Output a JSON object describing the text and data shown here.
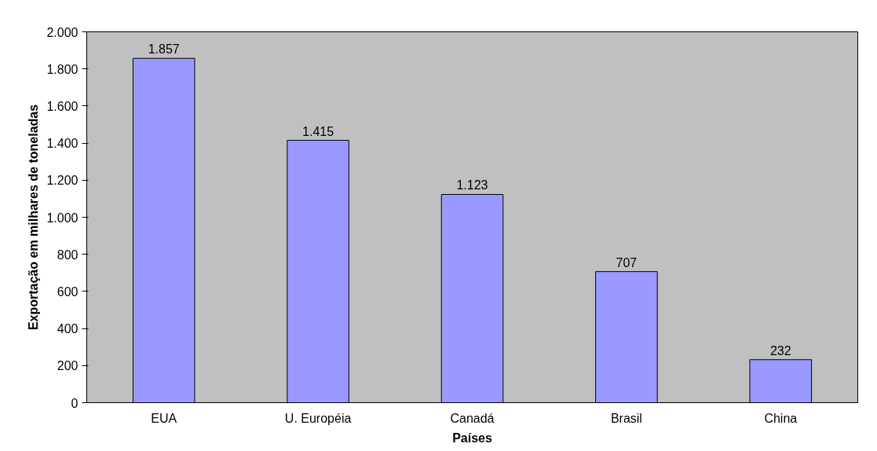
{
  "chart_data": {
    "type": "bar",
    "xlabel": "Países",
    "ylabel": "Exportação em milhares de toneladas",
    "categories": [
      "EUA",
      "U. Européia",
      "Canadá",
      "Brasil",
      "China"
    ],
    "values": [
      1857,
      1415,
      1123,
      707,
      232
    ],
    "color": "#9999ff",
    "value_labels": [
      "1.857",
      "1.415",
      "1.123",
      "707",
      "232"
    ],
    "ylim": [
      0,
      2000
    ],
    "yticks": [
      {
        "value": 0,
        "label": "0"
      },
      {
        "value": 200,
        "label": "200"
      },
      {
        "value": 400,
        "label": "400"
      },
      {
        "value": 600,
        "label": "600"
      },
      {
        "value": 800,
        "label": "800"
      },
      {
        "value": 1000,
        "label": "1.000"
      },
      {
        "value": 1200,
        "label": "1.200"
      },
      {
        "value": 1400,
        "label": "1.400"
      },
      {
        "value": 1600,
        "label": "1.600"
      },
      {
        "value": 1800,
        "label": "1.800"
      },
      {
        "value": 2000,
        "label": "2.000"
      }
    ],
    "grid": false
  }
}
